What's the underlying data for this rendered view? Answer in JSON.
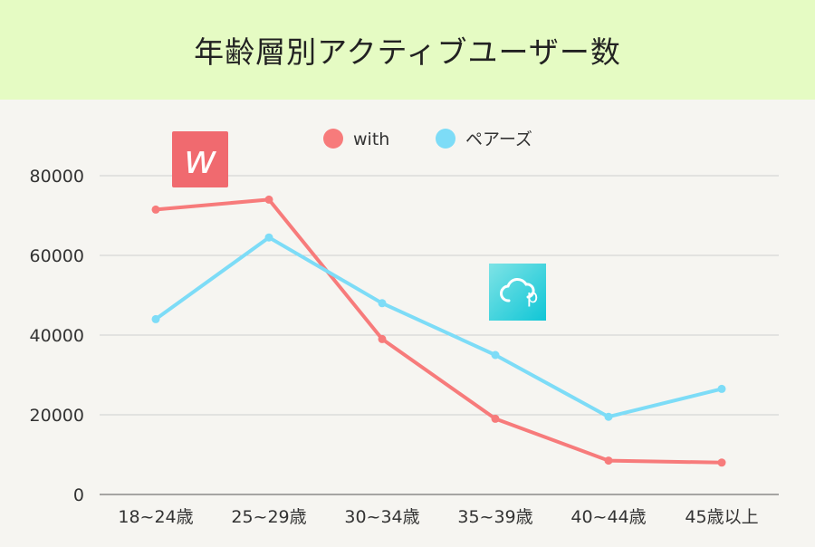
{
  "title": "年齢層別アクティブユーザー数",
  "chart_data": {
    "type": "line",
    "title": "年齢層別アクティブユーザー数",
    "xlabel": "",
    "ylabel": "",
    "categories": [
      "18~24歳",
      "25~29歳",
      "30~34歳",
      "35~39歳",
      "40~44歳",
      "45歳以上"
    ],
    "ylim": [
      0,
      90000
    ],
    "yticks": [
      0,
      20000,
      40000,
      60000,
      80000
    ],
    "grid": true,
    "legend_position": "top-center",
    "series": [
      {
        "name": "with",
        "color": "#f77b7b",
        "values": [
          71500,
          74000,
          39000,
          19000,
          8500,
          8000
        ]
      },
      {
        "name": "ペアーズ",
        "color": "#7ddcf7",
        "values": [
          44000,
          64500,
          48000,
          35000,
          19500,
          26500
        ]
      }
    ]
  },
  "logos": {
    "with": {
      "color": "#f06a6f",
      "glyph": "w"
    },
    "pairs": {
      "color": "#1bc9d9",
      "glyph": "p"
    }
  }
}
